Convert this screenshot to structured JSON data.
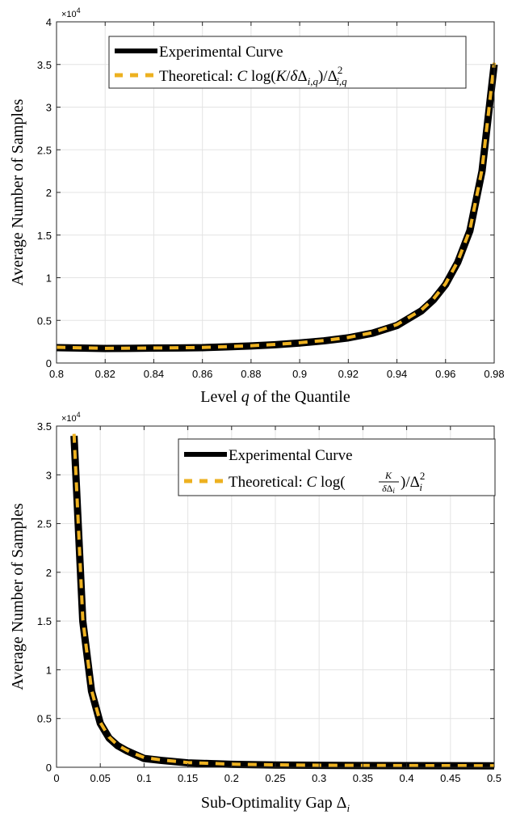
{
  "chart_data": [
    {
      "type": "line",
      "xlabel": "Level q of the Quantile",
      "ylabel": "Average Number of Samples",
      "y_exponent_label": "×10",
      "y_exponent_power": "4",
      "xlim": [
        0.8,
        0.98
      ],
      "ylim": [
        0,
        40000
      ],
      "x_ticks": [
        0.8,
        0.82,
        0.84,
        0.86,
        0.88,
        0.9,
        0.92,
        0.94,
        0.96,
        0.98
      ],
      "y_ticks": [
        0,
        5000,
        10000,
        15000,
        20000,
        25000,
        30000,
        35000,
        40000
      ],
      "y_tick_labels": [
        "0",
        "0.5",
        "1",
        "1.5",
        "2",
        "2.5",
        "3",
        "3.5",
        "4"
      ],
      "grid": true,
      "legend_position": "top-center",
      "colors": {
        "experimental": "#000000",
        "theoretical": "#EDB120"
      },
      "series": [
        {
          "name": "Experimental Curve",
          "x": [
            0.8,
            0.81,
            0.82,
            0.83,
            0.84,
            0.85,
            0.86,
            0.87,
            0.88,
            0.89,
            0.9,
            0.91,
            0.92,
            0.93,
            0.94,
            0.95,
            0.955,
            0.96,
            0.965,
            0.97,
            0.975,
            0.98
          ],
          "values": [
            1800,
            1750,
            1700,
            1720,
            1750,
            1770,
            1800,
            1900,
            2000,
            2150,
            2350,
            2600,
            2950,
            3500,
            4400,
            6100,
            7400,
            9200,
            11800,
            15500,
            22500,
            35000
          ]
        },
        {
          "name": "Theoretical: C log(K/δΔ_{i,q})/Δ_{i,q}^2",
          "x": [
            0.8,
            0.81,
            0.82,
            0.83,
            0.84,
            0.85,
            0.86,
            0.87,
            0.88,
            0.89,
            0.9,
            0.91,
            0.92,
            0.93,
            0.94,
            0.95,
            0.955,
            0.96,
            0.965,
            0.97,
            0.975,
            0.98
          ],
          "values": [
            1850,
            1780,
            1720,
            1740,
            1760,
            1790,
            1820,
            1920,
            2030,
            2180,
            2380,
            2640,
            3000,
            3560,
            4500,
            6200,
            7500,
            9300,
            11900,
            15600,
            22700,
            35200
          ]
        }
      ]
    },
    {
      "type": "line",
      "xlabel": "Sub-Optimality Gap Δ_i",
      "ylabel": "Average Number of Samples",
      "y_exponent_label": "×10",
      "y_exponent_power": "4",
      "xlim": [
        0,
        0.5
      ],
      "ylim": [
        0,
        35000
      ],
      "x_ticks": [
        0,
        0.05,
        0.1,
        0.15,
        0.2,
        0.25,
        0.3,
        0.35,
        0.4,
        0.45,
        0.5
      ],
      "y_ticks": [
        0,
        5000,
        10000,
        15000,
        20000,
        25000,
        30000,
        35000
      ],
      "y_tick_labels": [
        "0",
        "0.5",
        "1",
        "1.5",
        "2",
        "2.5",
        "3",
        "3.5"
      ],
      "grid": true,
      "legend_position": "top-right",
      "colors": {
        "experimental": "#000000",
        "theoretical": "#EDB120"
      },
      "series": [
        {
          "name": "Experimental Curve",
          "x": [
            0.02,
            0.03,
            0.04,
            0.05,
            0.06,
            0.07,
            0.08,
            0.09,
            0.1,
            0.12,
            0.15,
            0.2,
            0.25,
            0.3,
            0.35,
            0.4,
            0.45,
            0.5
          ],
          "values": [
            34000,
            15000,
            7800,
            4500,
            3000,
            2200,
            1700,
            1300,
            900,
            700,
            450,
            300,
            230,
            200,
            180,
            170,
            160,
            150
          ]
        },
        {
          "name": "Theoretical: C log(K/δΔ_i)/Δ_i^2",
          "x": [
            0.02,
            0.03,
            0.04,
            0.05,
            0.06,
            0.07,
            0.08,
            0.09,
            0.1,
            0.12,
            0.15,
            0.2,
            0.25,
            0.3,
            0.35,
            0.4,
            0.45,
            0.5
          ],
          "values": [
            34200,
            15200,
            7900,
            4600,
            3100,
            2250,
            1750,
            1350,
            1000,
            750,
            480,
            320,
            250,
            210,
            190,
            175,
            165,
            155
          ]
        }
      ]
    }
  ]
}
